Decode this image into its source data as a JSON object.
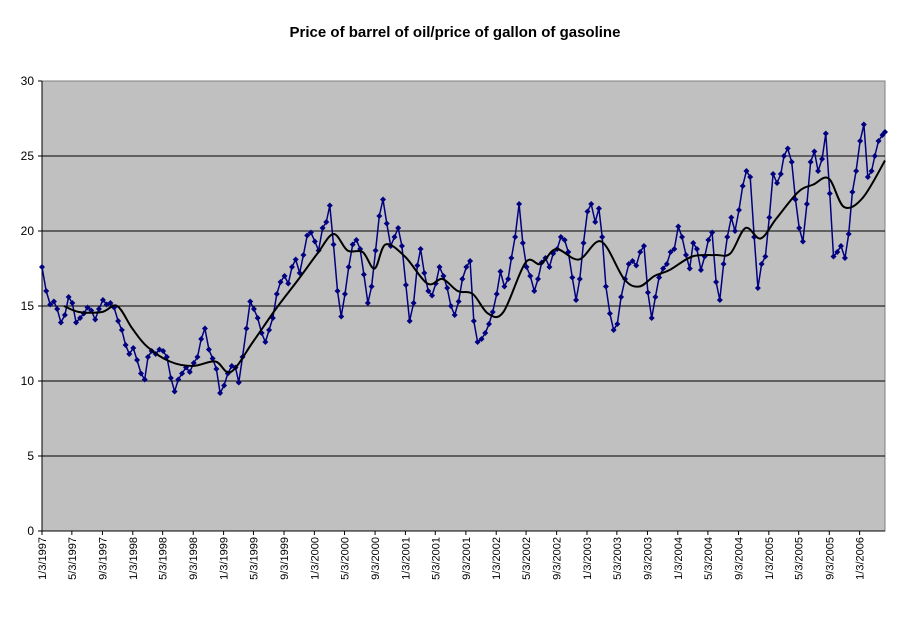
{
  "chart_data": {
    "type": "line",
    "title": "Price of barrel of oil/price of gallon of gasoline",
    "xlabel": "",
    "ylabel": "",
    "ylim": [
      0,
      30
    ],
    "yticks": [
      "0",
      "5",
      "10",
      "15",
      "20",
      "25",
      "30"
    ],
    "xlim": [
      "1997-01-03",
      "2006-04-15"
    ],
    "x_tick_labels": [
      "1/3/1997",
      "5/3/1997",
      "9/3/1997",
      "1/3/1998",
      "5/3/1998",
      "9/3/1998",
      "1/3/1999",
      "5/3/1999",
      "9/3/1999",
      "1/3/2000",
      "5/3/2000",
      "9/3/2000",
      "1/3/2001",
      "5/3/2001",
      "9/3/2001",
      "1/3/2002",
      "5/3/2002",
      "9/3/2002",
      "1/3/2003",
      "5/3/2003",
      "9/3/2003",
      "1/3/2004",
      "5/3/2004",
      "9/3/2004",
      "1/3/2005",
      "5/3/2005",
      "9/3/2005",
      "1/3/2006"
    ],
    "grid": "horizontal",
    "legend": "none",
    "colors": {
      "plot_background": "#c0c0c0",
      "weekly_series": "#000080",
      "moving_average": "#000000",
      "gridline": "#000000"
    },
    "series": [
      {
        "name": "",
        "style": "line-diamond-markers",
        "points": [
          [
            "1997-01-03",
            17.6
          ],
          [
            "1997-01-20",
            16.0
          ],
          [
            "1997-02-05",
            15.1
          ],
          [
            "1997-02-20",
            15.3
          ],
          [
            "1997-03-05",
            14.8
          ],
          [
            "1997-03-20",
            13.9
          ],
          [
            "1997-04-05",
            14.4
          ],
          [
            "1997-04-20",
            15.6
          ],
          [
            "1997-05-05",
            15.2
          ],
          [
            "1997-05-20",
            13.9
          ],
          [
            "1997-06-05",
            14.2
          ],
          [
            "1997-06-20",
            14.5
          ],
          [
            "1997-07-05",
            14.9
          ],
          [
            "1997-07-20",
            14.7
          ],
          [
            "1997-08-05",
            14.1
          ],
          [
            "1997-08-20",
            14.8
          ],
          [
            "1997-09-05",
            15.4
          ],
          [
            "1997-09-20",
            15.1
          ],
          [
            "1997-10-05",
            15.2
          ],
          [
            "1997-10-20",
            14.9
          ],
          [
            "1997-11-05",
            14.0
          ],
          [
            "1997-11-20",
            13.4
          ],
          [
            "1997-12-05",
            12.4
          ],
          [
            "1997-12-20",
            11.8
          ],
          [
            "1998-01-05",
            12.2
          ],
          [
            "1998-01-20",
            11.4
          ],
          [
            "1998-02-05",
            10.5
          ],
          [
            "1998-02-20",
            10.1
          ],
          [
            "1998-03-05",
            11.6
          ],
          [
            "1998-03-20",
            12.0
          ],
          [
            "1998-04-05",
            11.8
          ],
          [
            "1998-04-20",
            12.1
          ],
          [
            "1998-05-05",
            12.0
          ],
          [
            "1998-05-20",
            11.6
          ],
          [
            "1998-06-05",
            10.2
          ],
          [
            "1998-06-20",
            9.3
          ],
          [
            "1998-07-05",
            10.1
          ],
          [
            "1998-07-20",
            10.5
          ],
          [
            "1998-08-05",
            10.9
          ],
          [
            "1998-08-20",
            10.6
          ],
          [
            "1998-09-05",
            11.2
          ],
          [
            "1998-09-20",
            11.6
          ],
          [
            "1998-10-05",
            12.8
          ],
          [
            "1998-10-20",
            13.5
          ],
          [
            "1998-11-05",
            12.1
          ],
          [
            "1998-11-20",
            11.5
          ],
          [
            "1998-12-05",
            10.8
          ],
          [
            "1998-12-20",
            9.2
          ],
          [
            "1999-01-05",
            9.7
          ],
          [
            "1999-01-20",
            10.5
          ],
          [
            "1999-02-05",
            11.0
          ],
          [
            "1999-02-20",
            10.9
          ],
          [
            "1999-03-05",
            9.9
          ],
          [
            "1999-03-20",
            11.6
          ],
          [
            "1999-04-05",
            13.5
          ],
          [
            "1999-04-20",
            15.3
          ],
          [
            "1999-05-05",
            14.8
          ],
          [
            "1999-05-20",
            14.2
          ],
          [
            "1999-06-05",
            13.2
          ],
          [
            "1999-06-20",
            12.6
          ],
          [
            "1999-07-05",
            13.4
          ],
          [
            "1999-07-20",
            14.2
          ],
          [
            "1999-08-05",
            15.8
          ],
          [
            "1999-08-20",
            16.6
          ],
          [
            "1999-09-05",
            17.0
          ],
          [
            "1999-09-20",
            16.5
          ],
          [
            "1999-10-05",
            17.6
          ],
          [
            "1999-10-20",
            18.1
          ],
          [
            "1999-11-05",
            17.2
          ],
          [
            "1999-11-20",
            18.4
          ],
          [
            "1999-12-05",
            19.7
          ],
          [
            "1999-12-20",
            19.9
          ],
          [
            "2000-01-05",
            19.3
          ],
          [
            "2000-01-20",
            18.7
          ],
          [
            "2000-02-05",
            20.2
          ],
          [
            "2000-02-20",
            20.6
          ],
          [
            "2000-03-05",
            21.7
          ],
          [
            "2000-03-20",
            19.1
          ],
          [
            "2000-04-05",
            16.0
          ],
          [
            "2000-04-20",
            14.3
          ],
          [
            "2000-05-05",
            15.8
          ],
          [
            "2000-05-20",
            17.6
          ],
          [
            "2000-06-05",
            19.1
          ],
          [
            "2000-06-20",
            19.4
          ],
          [
            "2000-07-05",
            18.8
          ],
          [
            "2000-07-20",
            17.1
          ],
          [
            "2000-08-05",
            15.2
          ],
          [
            "2000-08-20",
            16.3
          ],
          [
            "2000-09-05",
            18.7
          ],
          [
            "2000-09-20",
            21.0
          ],
          [
            "2000-10-05",
            22.1
          ],
          [
            "2000-10-20",
            20.5
          ],
          [
            "2000-11-05",
            19.0
          ],
          [
            "2000-11-20",
            19.6
          ],
          [
            "2000-12-05",
            20.2
          ],
          [
            "2000-12-20",
            19.0
          ],
          [
            "2001-01-05",
            16.4
          ],
          [
            "2001-01-20",
            14.0
          ],
          [
            "2001-02-05",
            15.2
          ],
          [
            "2001-02-20",
            17.7
          ],
          [
            "2001-03-05",
            18.8
          ],
          [
            "2001-03-20",
            17.2
          ],
          [
            "2001-04-05",
            16.0
          ],
          [
            "2001-04-20",
            15.7
          ],
          [
            "2001-05-05",
            16.5
          ],
          [
            "2001-05-20",
            17.6
          ],
          [
            "2001-06-05",
            17.0
          ],
          [
            "2001-06-20",
            16.2
          ],
          [
            "2001-07-05",
            15.0
          ],
          [
            "2001-07-20",
            14.4
          ],
          [
            "2001-08-05",
            15.3
          ],
          [
            "2001-08-20",
            16.8
          ],
          [
            "2001-09-05",
            17.6
          ],
          [
            "2001-09-20",
            18.0
          ],
          [
            "2001-10-05",
            14.0
          ],
          [
            "2001-10-20",
            12.6
          ],
          [
            "2001-11-05",
            12.8
          ],
          [
            "2001-11-20",
            13.2
          ],
          [
            "2001-12-05",
            13.8
          ],
          [
            "2001-12-20",
            14.6
          ],
          [
            "2002-01-05",
            15.8
          ],
          [
            "2002-01-20",
            17.3
          ],
          [
            "2002-02-05",
            16.3
          ],
          [
            "2002-02-20",
            16.8
          ],
          [
            "2002-03-05",
            18.2
          ],
          [
            "2002-03-20",
            19.6
          ],
          [
            "2002-04-05",
            21.8
          ],
          [
            "2002-04-20",
            19.2
          ],
          [
            "2002-05-05",
            17.6
          ],
          [
            "2002-05-20",
            17.0
          ],
          [
            "2002-06-05",
            16.0
          ],
          [
            "2002-06-20",
            16.8
          ],
          [
            "2002-07-05",
            17.9
          ],
          [
            "2002-07-20",
            18.2
          ],
          [
            "2002-08-05",
            17.6
          ],
          [
            "2002-08-20",
            18.5
          ],
          [
            "2002-09-05",
            18.8
          ],
          [
            "2002-09-20",
            19.6
          ],
          [
            "2002-10-05",
            19.4
          ],
          [
            "2002-10-20",
            18.6
          ],
          [
            "2002-11-05",
            16.9
          ],
          [
            "2002-11-20",
            15.4
          ],
          [
            "2002-12-05",
            16.8
          ],
          [
            "2002-12-20",
            19.2
          ],
          [
            "2003-01-05",
            21.3
          ],
          [
            "2003-01-20",
            21.8
          ],
          [
            "2003-02-05",
            20.6
          ],
          [
            "2003-02-20",
            21.5
          ],
          [
            "2003-03-05",
            19.6
          ],
          [
            "2003-03-20",
            16.3
          ],
          [
            "2003-04-05",
            14.5
          ],
          [
            "2003-04-20",
            13.4
          ],
          [
            "2003-05-05",
            13.8
          ],
          [
            "2003-05-20",
            15.6
          ],
          [
            "2003-06-05",
            16.8
          ],
          [
            "2003-06-20",
            17.8
          ],
          [
            "2003-07-05",
            18.0
          ],
          [
            "2003-07-20",
            17.7
          ],
          [
            "2003-08-05",
            18.6
          ],
          [
            "2003-08-20",
            19.0
          ],
          [
            "2003-09-05",
            15.9
          ],
          [
            "2003-09-20",
            14.2
          ],
          [
            "2003-10-05",
            15.6
          ],
          [
            "2003-10-20",
            16.9
          ],
          [
            "2003-11-05",
            17.5
          ],
          [
            "2003-11-20",
            17.8
          ],
          [
            "2003-12-05",
            18.6
          ],
          [
            "2003-12-20",
            18.8
          ],
          [
            "2004-01-05",
            20.3
          ],
          [
            "2004-01-20",
            19.6
          ],
          [
            "2004-02-05",
            18.4
          ],
          [
            "2004-02-20",
            17.5
          ],
          [
            "2004-03-05",
            19.2
          ],
          [
            "2004-03-20",
            18.8
          ],
          [
            "2004-04-05",
            17.4
          ],
          [
            "2004-04-20",
            18.3
          ],
          [
            "2004-05-05",
            19.4
          ],
          [
            "2004-05-20",
            19.9
          ],
          [
            "2004-06-05",
            16.6
          ],
          [
            "2004-06-20",
            15.4
          ],
          [
            "2004-07-05",
            17.8
          ],
          [
            "2004-07-20",
            19.6
          ],
          [
            "2004-08-05",
            20.9
          ],
          [
            "2004-08-20",
            20.0
          ],
          [
            "2004-09-05",
            21.4
          ],
          [
            "2004-09-20",
            23.0
          ],
          [
            "2004-10-05",
            24.0
          ],
          [
            "2004-10-20",
            23.6
          ],
          [
            "2004-11-05",
            19.6
          ],
          [
            "2004-11-20",
            16.2
          ],
          [
            "2004-12-05",
            17.8
          ],
          [
            "2004-12-20",
            18.3
          ],
          [
            "2005-01-05",
            20.9
          ],
          [
            "2005-01-20",
            23.8
          ],
          [
            "2005-02-05",
            23.2
          ],
          [
            "2005-02-20",
            23.8
          ],
          [
            "2005-03-05",
            25.0
          ],
          [
            "2005-03-20",
            25.5
          ],
          [
            "2005-04-05",
            24.6
          ],
          [
            "2005-04-20",
            22.1
          ],
          [
            "2005-05-05",
            20.2
          ],
          [
            "2005-05-20",
            19.3
          ],
          [
            "2005-06-05",
            21.8
          ],
          [
            "2005-06-20",
            24.6
          ],
          [
            "2005-07-05",
            25.3
          ],
          [
            "2005-07-20",
            24.0
          ],
          [
            "2005-08-05",
            24.8
          ],
          [
            "2005-08-20",
            26.5
          ],
          [
            "2005-09-05",
            22.5
          ],
          [
            "2005-09-20",
            18.3
          ],
          [
            "2005-10-05",
            18.6
          ],
          [
            "2005-10-20",
            19.0
          ],
          [
            "2005-11-05",
            18.2
          ],
          [
            "2005-11-20",
            19.8
          ],
          [
            "2005-12-05",
            22.6
          ],
          [
            "2005-12-20",
            24.0
          ],
          [
            "2006-01-05",
            26.0
          ],
          [
            "2006-01-20",
            27.1
          ],
          [
            "2006-02-05",
            23.6
          ],
          [
            "2006-02-20",
            24.0
          ],
          [
            "2006-03-05",
            25.0
          ],
          [
            "2006-03-20",
            26.0
          ],
          [
            "2006-04-05",
            26.4
          ],
          [
            "2006-04-15",
            26.6
          ]
        ]
      },
      {
        "name": "",
        "style": "smooth-line",
        "points": [
          [
            "1997-04-01",
            15.0
          ],
          [
            "1997-06-01",
            14.6
          ],
          [
            "1997-09-01",
            14.6
          ],
          [
            "1997-11-01",
            15.0
          ],
          [
            "1998-01-01",
            13.5
          ],
          [
            "1998-03-01",
            12.3
          ],
          [
            "1998-06-01",
            11.3
          ],
          [
            "1998-09-01",
            11.0
          ],
          [
            "1998-12-01",
            11.3
          ],
          [
            "1999-02-01",
            10.6
          ],
          [
            "1999-05-01",
            12.6
          ],
          [
            "1999-08-01",
            14.8
          ],
          [
            "1999-11-01",
            16.8
          ],
          [
            "2000-01-15",
            18.5
          ],
          [
            "2000-03-20",
            19.8
          ],
          [
            "2000-05-15",
            18.7
          ],
          [
            "2000-07-15",
            18.6
          ],
          [
            "2000-09-01",
            17.5
          ],
          [
            "2000-10-15",
            19.1
          ],
          [
            "2001-01-01",
            18.3
          ],
          [
            "2001-04-01",
            16.5
          ],
          [
            "2001-06-01",
            16.8
          ],
          [
            "2001-08-01",
            16.0
          ],
          [
            "2001-10-01",
            15.8
          ],
          [
            "2001-12-01",
            14.5
          ],
          [
            "2002-02-01",
            14.6
          ],
          [
            "2002-05-01",
            17.9
          ],
          [
            "2002-07-01",
            17.8
          ],
          [
            "2002-09-01",
            18.8
          ],
          [
            "2002-12-01",
            18.1
          ],
          [
            "2003-03-01",
            19.3
          ],
          [
            "2003-06-01",
            16.8
          ],
          [
            "2003-08-01",
            16.3
          ],
          [
            "2003-10-01",
            17.0
          ],
          [
            "2003-12-01",
            17.4
          ],
          [
            "2004-03-01",
            18.3
          ],
          [
            "2004-06-01",
            18.4
          ],
          [
            "2004-08-01",
            18.5
          ],
          [
            "2004-10-01",
            20.2
          ],
          [
            "2004-12-01",
            19.5
          ],
          [
            "2005-02-01",
            20.8
          ],
          [
            "2005-05-01",
            22.6
          ],
          [
            "2005-07-01",
            23.1
          ],
          [
            "2005-09-01",
            23.5
          ],
          [
            "2005-11-01",
            21.6
          ],
          [
            "2006-01-15",
            22.2
          ],
          [
            "2006-04-15",
            24.7
          ]
        ]
      }
    ]
  }
}
